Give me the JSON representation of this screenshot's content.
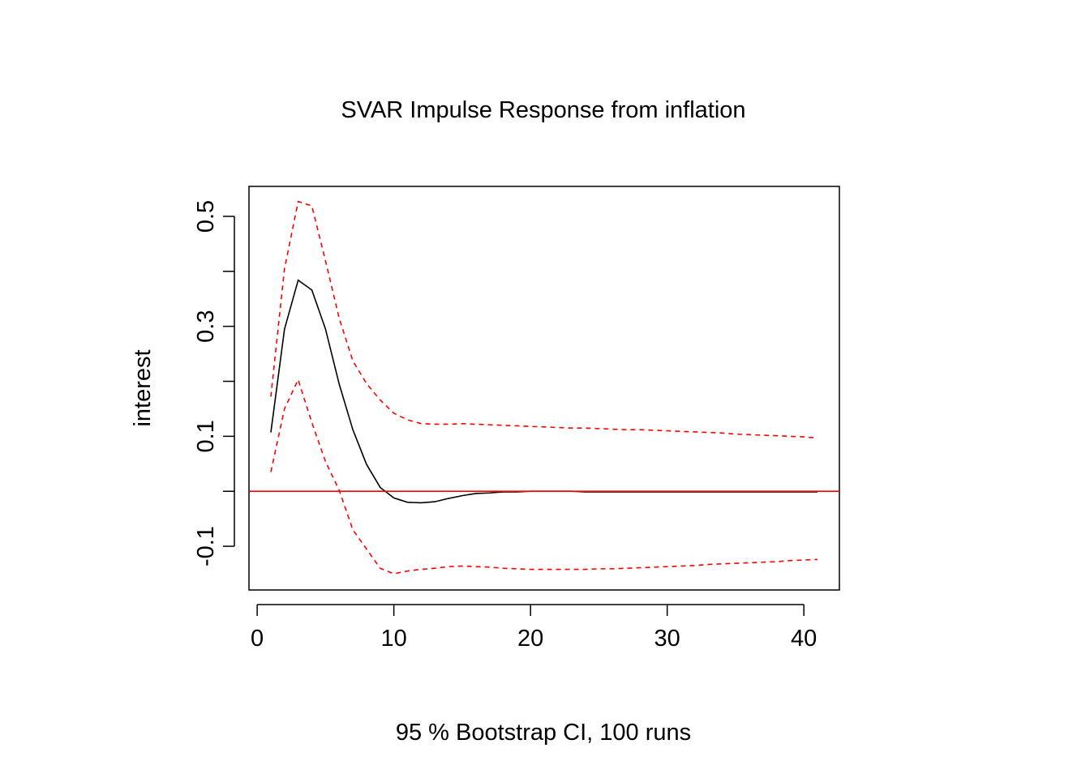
{
  "chart_data": {
    "type": "line",
    "title": "SVAR Impulse Response from inflation",
    "xlabel": "95 % Bootstrap CI,  100 runs",
    "ylabel": "interest",
    "xlim": [
      -0.6,
      42.6
    ],
    "ylim": [
      -0.1795,
      0.5545
    ],
    "x_ticks": [
      0,
      10,
      20,
      30,
      40
    ],
    "x_tick_labels": [
      "0",
      "10",
      "20",
      "30",
      "40"
    ],
    "y_ticks": [
      -0.1,
      0.0,
      0.1,
      0.2,
      0.3,
      0.4,
      0.5
    ],
    "y_tick_labels": [
      "-0.1",
      "",
      "0.1",
      "",
      "0.3",
      "",
      "0.5"
    ],
    "grid": false,
    "legend": "none",
    "zero_line": {
      "y": 0,
      "color": "#ff0000"
    },
    "x": [
      1,
      2,
      3,
      4,
      5,
      6,
      7,
      8,
      9,
      10,
      11,
      12,
      13,
      14,
      15,
      16,
      17,
      18,
      19,
      20,
      21,
      22,
      23,
      24,
      25,
      26,
      27,
      28,
      29,
      30,
      31,
      32,
      33,
      34,
      35,
      36,
      37,
      38,
      39,
      40,
      41
    ],
    "series": [
      {
        "color": "#000000",
        "dash": "solid",
        "values": [
          0.107,
          0.295,
          0.384,
          0.366,
          0.295,
          0.195,
          0.112,
          0.049,
          0.007,
          -0.012,
          -0.02,
          -0.021,
          -0.019,
          -0.013,
          -0.008,
          -0.004,
          -0.003,
          -0.001,
          -0.001,
          0,
          0,
          0,
          0,
          -0.001,
          -0.001,
          -0.001,
          -0.001,
          -0.001,
          -0.001,
          -0.001,
          -0.001,
          -0.001,
          -0.001,
          -0.001,
          -0.001,
          -0.001,
          -0.001,
          -0.001,
          -0.001,
          -0.001,
          -0.001
        ]
      },
      {
        "color": "#ff0000",
        "dash": "dashed",
        "values": [
          0.172,
          0.405,
          0.527,
          0.519,
          0.419,
          0.315,
          0.237,
          0.196,
          0.166,
          0.142,
          0.13,
          0.123,
          0.122,
          0.122,
          0.123,
          0.122,
          0.121,
          0.12,
          0.119,
          0.118,
          0.117,
          0.116,
          0.115,
          0.115,
          0.114,
          0.113,
          0.112,
          0.112,
          0.111,
          0.11,
          0.109,
          0.108,
          0.107,
          0.106,
          0.104,
          0.103,
          0.102,
          0.101,
          0.1,
          0.099,
          0.097
        ]
      },
      {
        "color": "#ff0000",
        "dash": "dashed",
        "values": [
          0.035,
          0.15,
          0.203,
          0.125,
          0.054,
          0.002,
          -0.07,
          -0.105,
          -0.14,
          -0.15,
          -0.145,
          -0.142,
          -0.14,
          -0.137,
          -0.136,
          -0.137,
          -0.138,
          -0.14,
          -0.141,
          -0.142,
          -0.142,
          -0.142,
          -0.142,
          -0.142,
          -0.141,
          -0.141,
          -0.14,
          -0.139,
          -0.138,
          -0.137,
          -0.136,
          -0.135,
          -0.133,
          -0.132,
          -0.131,
          -0.13,
          -0.129,
          -0.128,
          -0.126,
          -0.125,
          -0.124
        ]
      }
    ]
  }
}
